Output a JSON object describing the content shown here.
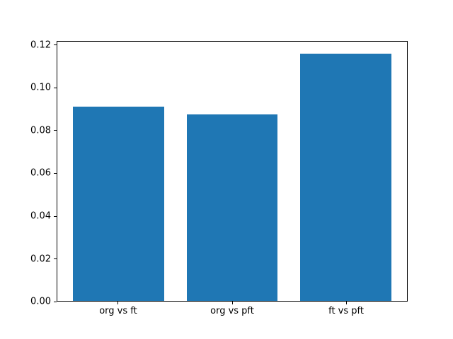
{
  "chart_data": {
    "type": "bar",
    "title": "",
    "xlabel": "",
    "ylabel": "",
    "categories": [
      "org vs ft",
      "org vs pft",
      "ft vs pft"
    ],
    "values": [
      0.0913,
      0.0877,
      0.1163
    ],
    "bar_color": "#1f77b4",
    "bar_width": 0.8,
    "xlim": [
      -0.54,
      2.54
    ],
    "ylim": [
      0,
      0.122
    ],
    "yticks": [
      0.0,
      0.02,
      0.04,
      0.06,
      0.08,
      0.1,
      0.12
    ],
    "ytick_labels": [
      "0.00",
      "0.02",
      "0.04",
      "0.06",
      "0.08",
      "0.10",
      "0.12"
    ],
    "grid": false,
    "legend": false,
    "axis_color": "#000000",
    "background_color": "#ffffff"
  }
}
